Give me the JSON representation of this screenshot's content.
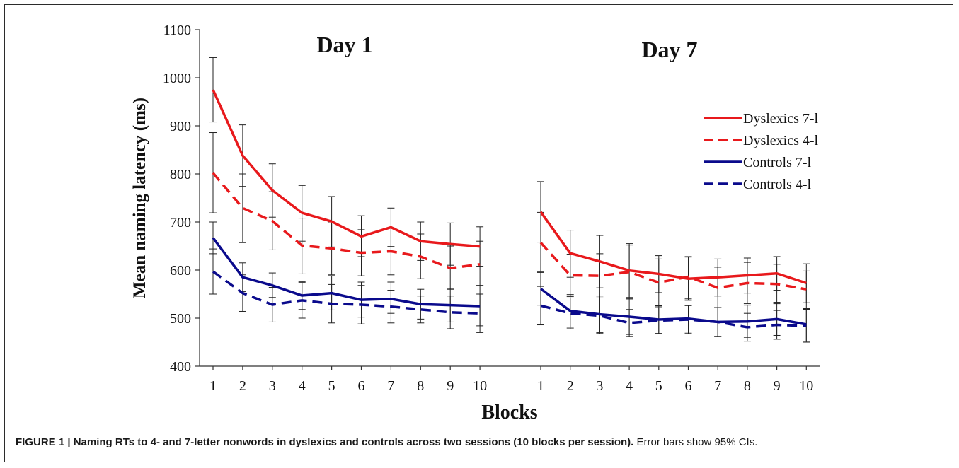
{
  "caption": {
    "label": "FIGURE 1 | Naming RTs to 4- and 7-letter nonwords in dyslexics and controls across two sessions (10 blocks per session).",
    "text": " Error bars show 95% CIs."
  },
  "chart_data": {
    "type": "line",
    "title": "",
    "ylabel": "Mean naming latency (ms)",
    "xlabel": "Blocks",
    "ylim": [
      400,
      1100
    ],
    "yticks": [
      400,
      500,
      600,
      700,
      800,
      900,
      1000,
      1100
    ],
    "grid": false,
    "legend_position": "right",
    "panels": [
      {
        "label": "Day 1",
        "x": [
          1,
          2,
          3,
          4,
          5,
          6,
          7,
          8,
          9,
          10
        ]
      },
      {
        "label": "Day 7",
        "x": [
          1,
          2,
          3,
          4,
          5,
          6,
          7,
          8,
          9,
          10
        ]
      }
    ],
    "series": [
      {
        "name": "Dyslexics 7-l",
        "color": "#e8191c",
        "dash": "solid",
        "day1": [
          975,
          838,
          766,
          719,
          701,
          670,
          689,
          660,
          654,
          649
        ],
        "day1_ci": [
          [
            908,
            1042
          ],
          [
            774,
            902
          ],
          [
            710,
            821
          ],
          [
            660,
            776
          ],
          [
            648,
            753
          ],
          [
            628,
            713
          ],
          [
            649,
            729
          ],
          [
            620,
            700
          ],
          [
            610,
            698
          ],
          [
            608,
            690
          ]
        ],
        "day7": [
          721,
          635,
          618,
          599,
          592,
          582,
          585,
          589,
          593,
          573
        ],
        "day7_ci": [
          [
            658,
            784
          ],
          [
            585,
            683
          ],
          [
            563,
            672
          ],
          [
            543,
            655
          ],
          [
            553,
            630
          ],
          [
            537,
            627
          ],
          [
            546,
            623
          ],
          [
            552,
            625
          ],
          [
            558,
            628
          ],
          [
            532,
            613
          ]
        ]
      },
      {
        "name": "Dyslexics 4-l",
        "color": "#e8191c",
        "dash": "dashed",
        "day1": [
          802,
          729,
          702,
          651,
          645,
          636,
          639,
          628,
          604,
          612
        ],
        "day1_ci": [
          [
            719,
            886
          ],
          [
            657,
            800
          ],
          [
            642,
            763
          ],
          [
            592,
            708
          ],
          [
            590,
            700
          ],
          [
            588,
            684
          ],
          [
            590,
            688
          ],
          [
            582,
            675
          ],
          [
            560,
            650
          ],
          [
            568,
            660
          ]
        ],
        "day7": [
          657,
          589,
          588,
          596,
          574,
          586,
          563,
          573,
          571,
          560
        ],
        "day7_ci": [
          [
            595,
            720
          ],
          [
            545,
            633
          ],
          [
            542,
            634
          ],
          [
            540,
            652
          ],
          [
            525,
            623
          ],
          [
            540,
            628
          ],
          [
            522,
            606
          ],
          [
            530,
            616
          ],
          [
            530,
            612
          ],
          [
            520,
            598
          ]
        ]
      },
      {
        "name": "Controls 7-l",
        "color": "#0a0a8c",
        "dash": "solid",
        "day1": [
          667,
          585,
          568,
          547,
          552,
          538,
          540,
          529,
          527,
          525
        ],
        "day1_ci": [
          [
            634,
            700
          ],
          [
            555,
            615
          ],
          [
            543,
            594
          ],
          [
            518,
            576
          ],
          [
            517,
            588
          ],
          [
            502,
            575
          ],
          [
            510,
            575
          ],
          [
            498,
            560
          ],
          [
            492,
            562
          ],
          [
            484,
            568
          ]
        ],
        "day7": [
          561,
          515,
          508,
          503,
          497,
          499,
          492,
          493,
          498,
          487
        ],
        "day7_ci": [
          [
            527,
            596
          ],
          [
            481,
            549
          ],
          [
            470,
            546
          ],
          [
            466,
            540
          ],
          [
            468,
            526
          ],
          [
            471,
            527
          ],
          [
            462,
            522
          ],
          [
            460,
            527
          ],
          [
            464,
            533
          ],
          [
            452,
            519
          ]
        ]
      },
      {
        "name": "Controls 4-l",
        "color": "#0a0a8c",
        "dash": "dashed",
        "day1": [
          597,
          552,
          528,
          537,
          530,
          528,
          524,
          518,
          512,
          510
        ],
        "day1_ci": [
          [
            550,
            644
          ],
          [
            514,
            590
          ],
          [
            492,
            564
          ],
          [
            500,
            574
          ],
          [
            490,
            570
          ],
          [
            488,
            568
          ],
          [
            490,
            558
          ],
          [
            490,
            546
          ],
          [
            478,
            546
          ],
          [
            470,
            550
          ]
        ],
        "day7": [
          526,
          510,
          505,
          490,
          495,
          497,
          492,
          481,
          486,
          484
        ],
        "day7_ci": [
          [
            486,
            566
          ],
          [
            478,
            542
          ],
          [
            468,
            542
          ],
          [
            462,
            518
          ],
          [
            468,
            522
          ],
          [
            468,
            526
          ],
          [
            462,
            522
          ],
          [
            452,
            510
          ],
          [
            456,
            516
          ],
          [
            450,
            518
          ]
        ]
      }
    ]
  }
}
